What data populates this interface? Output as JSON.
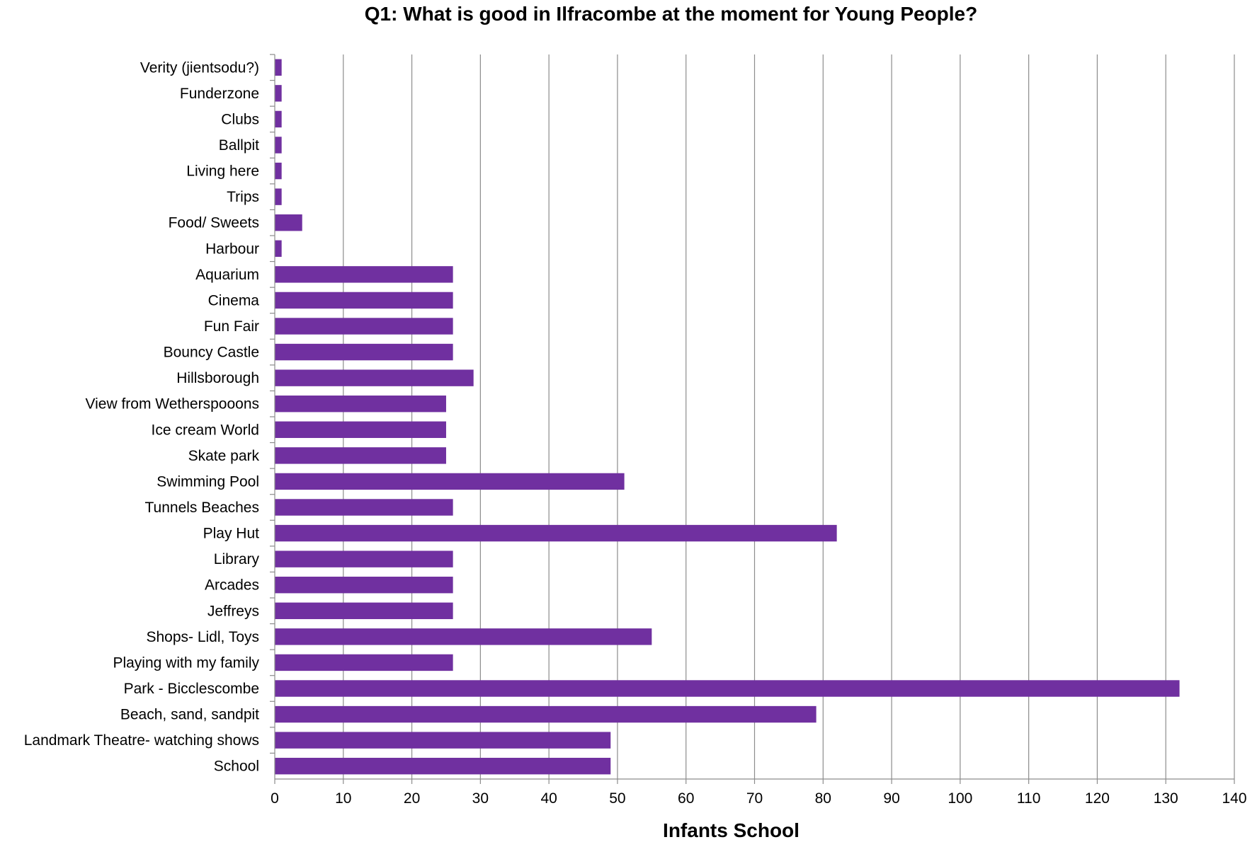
{
  "chart_data": {
    "type": "bar",
    "orientation": "horizontal",
    "title": "Q1: What is good in Ilfracombe at the moment for Young People?",
    "xlabel": "Infants School",
    "ylabel": "",
    "xlim": [
      0,
      140
    ],
    "x_ticks": [
      "0",
      "10",
      "20",
      "30",
      "40",
      "50",
      "60",
      "70",
      "80",
      "90",
      "100",
      "110",
      "120",
      "130",
      "140"
    ],
    "grid": "vertical",
    "legend": "none",
    "bar_color": "#7030a0",
    "categories": [
      "Verity (jientsodu?)",
      "Funderzone",
      "Clubs",
      "Ballpit",
      "Living here",
      "Trips",
      "Food/ Sweets",
      "Harbour",
      "Aquarium",
      "Cinema",
      "Fun Fair",
      "Bouncy Castle",
      "Hillsborough",
      "View from Wetherspooons",
      "Ice cream World",
      "Skate park",
      "Swimming Pool",
      "Tunnels Beaches",
      "Play Hut",
      "Library",
      "Arcades",
      "Jeffreys",
      "Shops- Lidl, Toys",
      "Playing with my family",
      "Park - Bicclescombe",
      "Beach, sand, sandpit",
      "Landmark Theatre- watching shows",
      "School"
    ],
    "values": [
      1,
      1,
      1,
      1,
      1,
      1,
      4,
      1,
      26,
      26,
      26,
      26,
      29,
      25,
      25,
      25,
      51,
      26,
      82,
      26,
      26,
      26,
      55,
      26,
      132,
      79,
      49,
      49
    ]
  }
}
